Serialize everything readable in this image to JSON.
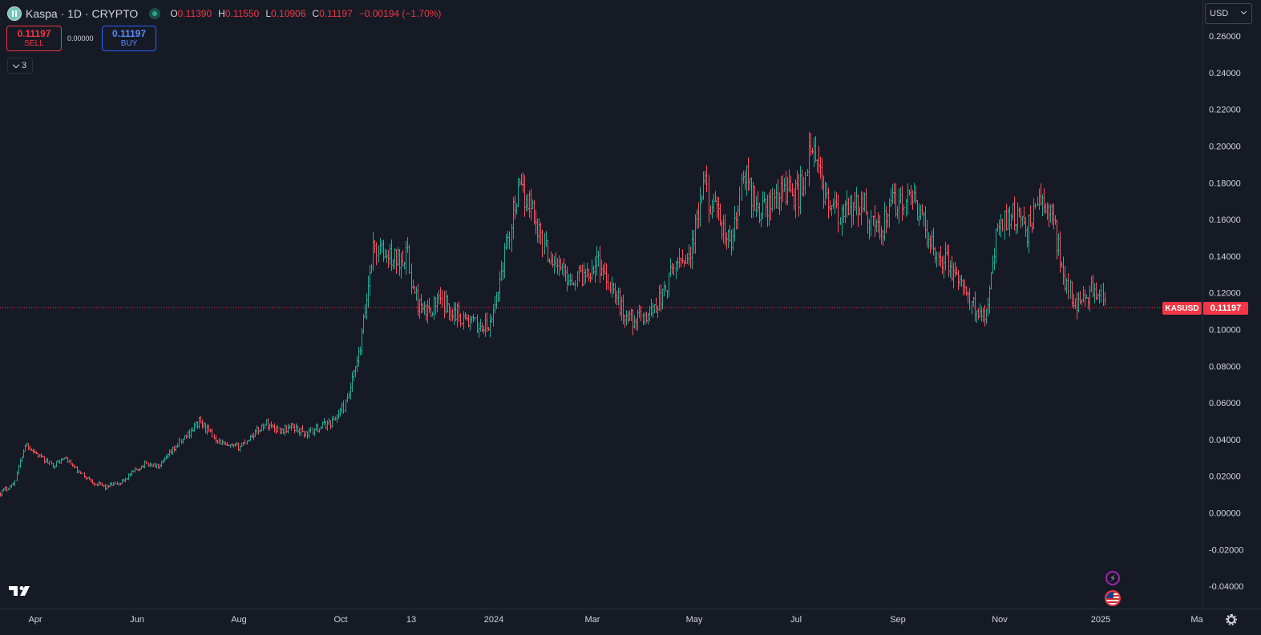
{
  "header": {
    "symbol_title": "Kaspa · 1D · CRYPTO",
    "ohlc": [
      {
        "key": "O",
        "value": "0.11390"
      },
      {
        "key": "H",
        "value": "0.11550"
      },
      {
        "key": "L",
        "value": "0.10906"
      },
      {
        "key": "C",
        "value": "0.11197"
      }
    ],
    "change": "−0.00194 (−1.70%)",
    "logo_icon": "kaspa-logo-icon",
    "live_icon": "market-open-dot-icon"
  },
  "trade": {
    "sell_price": "0.11197",
    "sell_label": "SELL",
    "spread": "0.00000",
    "buy_price": "0.11197",
    "buy_label": "BUY"
  },
  "indicators_toggle": {
    "count": "3"
  },
  "currency_select": {
    "value": "USD"
  },
  "price_label": {
    "symbol": "KASUSD",
    "value": "0.11197"
  },
  "colors": {
    "up": "#22ab94",
    "down": "#f7525f",
    "background": "#161a25",
    "last_price": "#f23645",
    "text": "#d1d4dc"
  },
  "chart_data": {
    "type": "ohlc",
    "title": "Kaspa · 1D · CRYPTO",
    "ylabel": "",
    "xlabel": "",
    "ylim": [
      -0.045,
      0.265
    ],
    "y_ticks": [
      "0.26000",
      "0.24000",
      "0.22000",
      "0.20000",
      "0.18000",
      "0.16000",
      "0.14000",
      "0.12000",
      "0.10000",
      "0.08000",
      "0.06000",
      "0.04000",
      "0.02000",
      "0.00000",
      "-0.02000",
      "-0.04000"
    ],
    "x_ticks": [
      "Apr",
      "Jun",
      "Aug",
      "Oct",
      "13",
      "2024",
      "Mar",
      "May",
      "Jul",
      "Sep",
      "Nov",
      "2025",
      "Ma"
    ],
    "x_range": [
      "2023-03-20",
      "2025-03-08"
    ],
    "last_price": 0.11197,
    "grid": false,
    "close_series": {
      "x": [
        "2023-03-20",
        "2023-03-28",
        "2023-04-04",
        "2023-04-12",
        "2023-04-20",
        "2023-04-28",
        "2023-05-06",
        "2023-05-14",
        "2023-05-22",
        "2023-05-30",
        "2023-06-07",
        "2023-06-15",
        "2023-06-23",
        "2023-07-01",
        "2023-07-09",
        "2023-07-17",
        "2023-07-25",
        "2023-08-02",
        "2023-08-10",
        "2023-08-18",
        "2023-08-26",
        "2023-09-03",
        "2023-09-11",
        "2023-09-19",
        "2023-09-27",
        "2023-10-05",
        "2023-10-13",
        "2023-10-21",
        "2023-10-29",
        "2023-11-06",
        "2023-11-13",
        "2023-11-18",
        "2023-11-22",
        "2023-11-28",
        "2023-12-06",
        "2023-12-14",
        "2023-12-22",
        "2023-12-30",
        "2024-01-07",
        "2024-01-15",
        "2024-01-23",
        "2024-01-31",
        "2024-02-08",
        "2024-02-16",
        "2024-02-24",
        "2024-03-03",
        "2024-03-11",
        "2024-03-19",
        "2024-03-27",
        "2024-04-04",
        "2024-04-12",
        "2024-04-20",
        "2024-04-28",
        "2024-05-06",
        "2024-05-14",
        "2024-05-22",
        "2024-05-30",
        "2024-06-07",
        "2024-06-15",
        "2024-06-23",
        "2024-07-01",
        "2024-07-09",
        "2024-07-17",
        "2024-07-25",
        "2024-08-02",
        "2024-08-10",
        "2024-08-18",
        "2024-08-26",
        "2024-09-03",
        "2024-09-11",
        "2024-09-19",
        "2024-09-27",
        "2024-10-05",
        "2024-10-13",
        "2024-10-21",
        "2024-10-29",
        "2024-11-06",
        "2024-11-14",
        "2024-11-22",
        "2024-11-30",
        "2024-12-08",
        "2024-12-16",
        "2024-12-24",
        "2025-01-01",
        "2025-01-05",
        "2025-01-09"
      ],
      "close": [
        0.011,
        0.016,
        0.038,
        0.031,
        0.026,
        0.03,
        0.022,
        0.017,
        0.014,
        0.016,
        0.022,
        0.027,
        0.025,
        0.034,
        0.042,
        0.05,
        0.042,
        0.036,
        0.036,
        0.043,
        0.049,
        0.045,
        0.047,
        0.043,
        0.047,
        0.05,
        0.06,
        0.088,
        0.145,
        0.14,
        0.138,
        0.143,
        0.12,
        0.108,
        0.115,
        0.112,
        0.106,
        0.102,
        0.101,
        0.138,
        0.175,
        0.17,
        0.145,
        0.135,
        0.128,
        0.13,
        0.138,
        0.125,
        0.108,
        0.105,
        0.11,
        0.12,
        0.138,
        0.142,
        0.178,
        0.16,
        0.145,
        0.185,
        0.165,
        0.168,
        0.178,
        0.172,
        0.198,
        0.175,
        0.16,
        0.165,
        0.168,
        0.152,
        0.168,
        0.17,
        0.166,
        0.145,
        0.138,
        0.126,
        0.113,
        0.109,
        0.158,
        0.165,
        0.152,
        0.17,
        0.163,
        0.125,
        0.113,
        0.122,
        0.12,
        0.112
      ]
    }
  }
}
